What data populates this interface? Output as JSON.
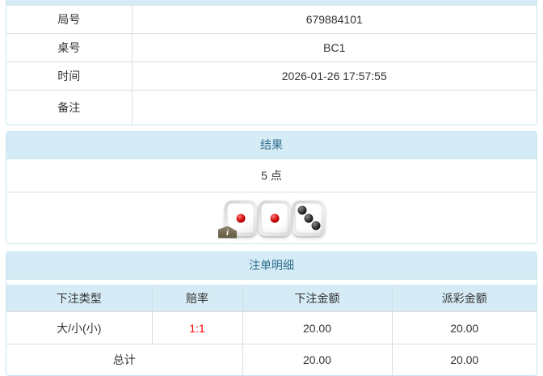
{
  "colors": {
    "panel_border": "#c9e5f0",
    "heading_bg": "#d5ebf5",
    "heading_text": "#31708f",
    "row_border": "#dddddd",
    "body_text": "#333333",
    "odds_red": "#ff0000"
  },
  "info_table": {
    "rows": [
      {
        "label": "局号",
        "value": "679884101"
      },
      {
        "label": "桌号",
        "value": "BC1"
      },
      {
        "label": "时间",
        "value": "2026-01-26 17:57:55"
      },
      {
        "label": "备注",
        "value": ""
      }
    ]
  },
  "result_panel": {
    "title": "结果",
    "points_text": "5 点",
    "dice": [
      1,
      1,
      3
    ],
    "info_badge_label": "i"
  },
  "bets_panel": {
    "title": "注单明细",
    "columns": [
      "下注类型",
      "赔率",
      "下注金额",
      "派彩金额"
    ],
    "rows": [
      {
        "type": "大/小(小)",
        "odds": "1:1",
        "odds_color": "#ff0000",
        "bet": "20.00",
        "payout": "20.00"
      }
    ],
    "total": {
      "label": "总计",
      "bet": "20.00",
      "payout": "20.00"
    }
  }
}
